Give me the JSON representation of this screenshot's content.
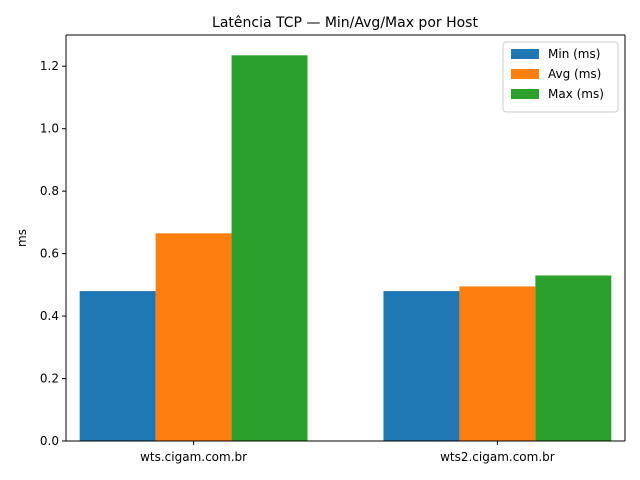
{
  "chart_data": {
    "type": "bar",
    "title": "Latência TCP — Min/Avg/Max por Host",
    "xlabel": "",
    "ylabel": "ms",
    "categories": [
      "wts.cigam.com.br",
      "wts2.cigam.com.br"
    ],
    "series": [
      {
        "name": "Min (ms)",
        "values": [
          0.48,
          0.48
        ],
        "color": "#1f77b4"
      },
      {
        "name": "Avg (ms)",
        "values": [
          0.665,
          0.495
        ],
        "color": "#ff7f0e"
      },
      {
        "name": "Max (ms)",
        "values": [
          1.235,
          0.53
        ],
        "color": "#2ca02c"
      }
    ],
    "ylim": [
      0,
      1.3
    ],
    "yticks": [
      "0.0",
      "0.2",
      "0.4",
      "0.6",
      "0.8",
      "1.0",
      "1.2"
    ],
    "grid": false,
    "legend_position": "top-right"
  }
}
